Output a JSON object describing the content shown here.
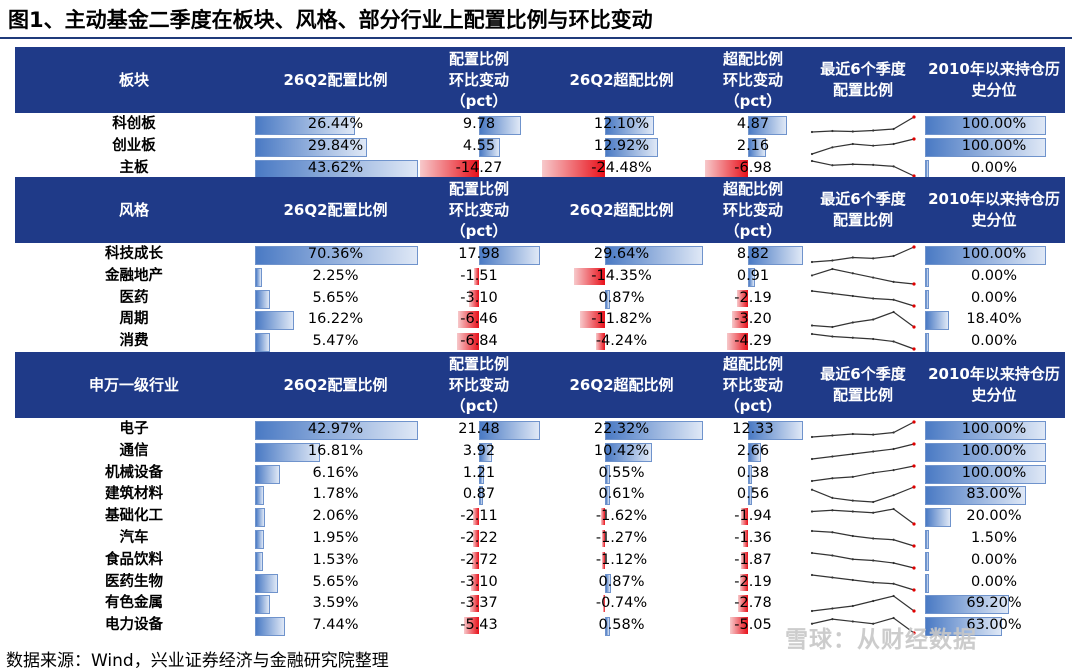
{
  "title": "图1、主动基金二季度在板块、风格、部分行业上配置比例与环比变动",
  "footer": "数据来源：Wind，兴业证券经济与金融研究院整理",
  "watermark": "雪球：从财经数据",
  "colors": {
    "header_bg": "#1f3a88",
    "pos_bar": "#4a7ac4",
    "neg_bar": "#e8101a"
  },
  "sections": [
    {
      "name": "sector",
      "headers": [
        "板块",
        "26Q2配置比例",
        "配置比例\n环比变动\n（pct）",
        "26Q2超配比例",
        "超配比例\n环比变动\n（pct）",
        "最近6个季度\n配置比例",
        "2010年以来持仓历\n史分位"
      ],
      "rows": [
        {
          "label": "科创板",
          "alloc": "26.44%",
          "alloc_v": 26.44,
          "alloc_chg": "9.78",
          "alloc_chg_v": 9.78,
          "over": "12.10%",
          "over_v": 12.1,
          "over_chg": "4.87",
          "over_chg_v": 4.87,
          "trend": [
            2,
            2.4,
            2.2,
            2.6,
            3.2,
            8
          ],
          "pct": "100.00%",
          "pct_v": 100
        },
        {
          "label": "创业板",
          "alloc": "29.84%",
          "alloc_v": 29.84,
          "alloc_chg": "4.55",
          "alloc_chg_v": 4.55,
          "over": "12.92%",
          "over_v": 12.92,
          "over_chg": "2.16",
          "over_chg_v": 2.16,
          "trend": [
            3,
            5,
            6,
            5.5,
            6,
            7.5
          ],
          "pct": "100.00%",
          "pct_v": 100
        },
        {
          "label": "主板",
          "alloc": "43.62%",
          "alloc_v": 43.62,
          "alloc_chg": "-14.27",
          "alloc_chg_v": -14.27,
          "over": "-24.48%",
          "over_v": -24.48,
          "over_chg": "-6.98",
          "over_chg_v": -6.98,
          "trend": [
            8,
            6,
            6.5,
            6.2,
            5.5,
            1
          ],
          "pct": "0.00%",
          "pct_v": 0
        }
      ]
    },
    {
      "name": "style",
      "headers": [
        "风格",
        "26Q2配置比例",
        "配置比例\n环比变动\n（pct）",
        "26Q2超配比例",
        "超配比例\n环比变动\n（pct）",
        "最近6个季度\n配置比例",
        "2010年以来持仓历\n史分位"
      ],
      "rows": [
        {
          "label": "科技成长",
          "alloc": "70.36%",
          "alloc_v": 70.36,
          "alloc_chg": "17.98",
          "alloc_chg_v": 17.98,
          "over": "29.64%",
          "over_v": 29.64,
          "over_chg": "8.82",
          "over_chg_v": 8.82,
          "trend": [
            3,
            3.5,
            4.5,
            4.2,
            5,
            8
          ],
          "pct": "100.00%",
          "pct_v": 100
        },
        {
          "label": "金融地产",
          "alloc": "2.25%",
          "alloc_v": 2.25,
          "alloc_chg": "-1.51",
          "alloc_chg_v": -1.51,
          "over": "-14.35%",
          "over_v": -14.35,
          "over_chg": "0.91",
          "over_chg_v": 0.91,
          "trend": [
            4,
            5.5,
            4.5,
            3.5,
            2.5,
            2
          ],
          "pct": "0.00%",
          "pct_v": 0
        },
        {
          "label": "医药",
          "alloc": "5.65%",
          "alloc_v": 5.65,
          "alloc_chg": "-3.10",
          "alloc_chg_v": -3.1,
          "over": "0.87%",
          "over_v": 0.87,
          "over_chg": "-2.19",
          "over_chg_v": -2.19,
          "trend": [
            7,
            6,
            5,
            4,
            3.5,
            1
          ],
          "pct": "0.00%",
          "pct_v": 0
        },
        {
          "label": "周期",
          "alloc": "16.22%",
          "alloc_v": 16.22,
          "alloc_chg": "-6.46",
          "alloc_chg_v": -6.46,
          "over": "-11.82%",
          "over_v": -11.82,
          "over_chg": "-3.20",
          "over_chg_v": -3.2,
          "trend": [
            2,
            1.5,
            3,
            4,
            6.5,
            1.5
          ],
          "pct": "18.40%",
          "pct_v": 18.4
        },
        {
          "label": "消费",
          "alloc": "5.47%",
          "alloc_v": 5.47,
          "alloc_chg": "-6.84",
          "alloc_chg_v": -6.84,
          "over": "-4.24%",
          "over_v": -4.24,
          "over_chg": "-4.29",
          "over_chg_v": -4.29,
          "trend": [
            7,
            6,
            5.5,
            5,
            4,
            1
          ],
          "pct": "0.00%",
          "pct_v": 0
        }
      ]
    },
    {
      "name": "industry",
      "headers": [
        "申万一级行业",
        "26Q2配置比例",
        "配置比例\n环比变动\n（pct）",
        "26Q2超配比例",
        "超配比例\n环比变动\n（pct）",
        "最近6个季度\n配置比例",
        "2010年以来持仓历\n史分位"
      ],
      "rows": [
        {
          "label": "电子",
          "alloc": "42.97%",
          "alloc_v": 42.97,
          "alloc_chg": "21.48",
          "alloc_chg_v": 21.48,
          "over": "22.32%",
          "over_v": 22.32,
          "over_chg": "12.33",
          "over_chg_v": 12.33,
          "trend": [
            3,
            3.5,
            4,
            3.8,
            4.5,
            8
          ],
          "pct": "100.00%",
          "pct_v": 100
        },
        {
          "label": "通信",
          "alloc": "16.81%",
          "alloc_v": 16.81,
          "alloc_chg": "3.92",
          "alloc_chg_v": 3.92,
          "over": "10.42%",
          "over_v": 10.42,
          "over_chg": "2.66",
          "over_chg_v": 2.66,
          "trend": [
            2,
            3,
            4,
            5,
            6,
            8
          ],
          "pct": "100.00%",
          "pct_v": 100
        },
        {
          "label": "机械设备",
          "alloc": "6.16%",
          "alloc_v": 6.16,
          "alloc_chg": "1.21",
          "alloc_chg_v": 1.21,
          "over": "0.55%",
          "over_v": 0.55,
          "over_chg": "0.38",
          "over_chg_v": 0.38,
          "trend": [
            2,
            3,
            3.5,
            5,
            6,
            7.5
          ],
          "pct": "100.00%",
          "pct_v": 100
        },
        {
          "label": "建筑材料",
          "alloc": "1.78%",
          "alloc_v": 1.78,
          "alloc_chg": "0.87",
          "alloc_chg_v": 0.87,
          "over": "0.61%",
          "over_v": 0.61,
          "over_chg": "0.56",
          "over_chg_v": 0.56,
          "trend": [
            6,
            3,
            2,
            1.5,
            4,
            7
          ],
          "pct": "83.00%",
          "pct_v": 83
        },
        {
          "label": "基础化工",
          "alloc": "2.06%",
          "alloc_v": 2.06,
          "alloc_chg": "-2.11",
          "alloc_chg_v": -2.11,
          "over": "-1.62%",
          "over_v": -1.62,
          "over_chg": "-1.94",
          "over_chg_v": -1.94,
          "trend": [
            6,
            6.5,
            6,
            5.5,
            7,
            1
          ],
          "pct": "20.00%",
          "pct_v": 20
        },
        {
          "label": "汽车",
          "alloc": "1.95%",
          "alloc_v": 1.95,
          "alloc_chg": "-2.22",
          "alloc_chg_v": -2.22,
          "over": "-1.27%",
          "over_v": -1.27,
          "over_chg": "-1.36",
          "over_chg_v": -1.36,
          "trend": [
            7,
            6.5,
            5,
            4,
            3.5,
            1
          ],
          "pct": "1.50%",
          "pct_v": 1.5
        },
        {
          "label": "食品饮料",
          "alloc": "1.53%",
          "alloc_v": 1.53,
          "alloc_chg": "-2.72",
          "alloc_chg_v": -2.72,
          "over": "-1.12%",
          "over_v": -1.12,
          "over_chg": "-1.87",
          "over_chg_v": -1.87,
          "trend": [
            7,
            6,
            4.5,
            4,
            3,
            1
          ],
          "pct": "0.00%",
          "pct_v": 0
        },
        {
          "label": "医药生物",
          "alloc": "5.65%",
          "alloc_v": 5.65,
          "alloc_chg": "-3.10",
          "alloc_chg_v": -3.1,
          "over": "0.87%",
          "over_v": 0.87,
          "over_chg": "-2.19",
          "over_chg_v": -2.19,
          "trend": [
            7,
            6,
            5,
            4,
            3.5,
            1
          ],
          "pct": "0.00%",
          "pct_v": 0
        },
        {
          "label": "有色金属",
          "alloc": "3.59%",
          "alloc_v": 3.59,
          "alloc_chg": "-3.37",
          "alloc_chg_v": -3.37,
          "over": "-0.74%",
          "over_v": -0.74,
          "over_chg": "-2.78",
          "over_chg_v": -2.78,
          "trend": [
            2,
            3,
            4,
            6,
            8,
            2
          ],
          "pct": "69.20%",
          "pct_v": 69.2
        },
        {
          "label": "电力设备",
          "alloc": "7.44%",
          "alloc_v": 7.44,
          "alloc_chg": "-5.43",
          "alloc_chg_v": -5.43,
          "over": "0.58%",
          "over_v": 0.58,
          "over_chg": "-5.05",
          "over_chg_v": -5.05,
          "trend": [
            5,
            7,
            6,
            5,
            7.5,
            1
          ],
          "pct": "63.00%",
          "pct_v": 63
        }
      ]
    }
  ]
}
